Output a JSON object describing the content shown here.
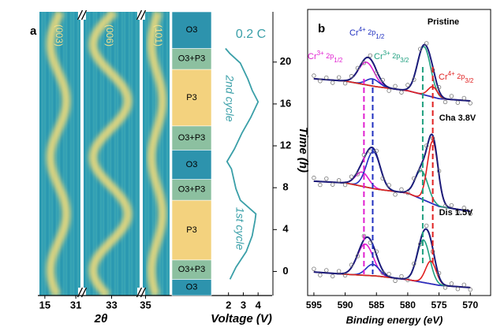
{
  "chart_data": [
    {
      "type": "phase-map",
      "panel_label": "a",
      "x_label": "2θ",
      "y_label": "Time (h)",
      "ylim": [
        -2.3,
        24.8
      ],
      "yticks": [
        0,
        4,
        8,
        12,
        16,
        20
      ],
      "segments": [
        {
          "label": "(003)",
          "xlim": [
            12.2,
            33.4
          ],
          "xticks": [
            15,
            31
          ]
        },
        {
          "label": "(006)",
          "xlim": [
            31.2,
            34.8
          ],
          "xticks": [
            33
          ]
        },
        {
          "label": "(101)",
          "xlim": [
            34.7,
            37.6
          ],
          "xticks": [
            35
          ]
        }
      ],
      "phases": [
        {
          "label": "O3",
          "range": [
            -2.3,
            -0.75
          ],
          "color": "#2d93ad"
        },
        {
          "label": "O3+P3",
          "range": [
            -0.75,
            1.1
          ],
          "color": "#8cc0a0"
        },
        {
          "label": "P3",
          "range": [
            1.1,
            6.8
          ],
          "color": "#f3d27e"
        },
        {
          "label": "O3+P3",
          "range": [
            6.8,
            8.8
          ],
          "color": "#8cc0a0"
        },
        {
          "label": "O3",
          "range": [
            8.8,
            11.6
          ],
          "color": "#2d93ad"
        },
        {
          "label": "O3+P3",
          "range": [
            11.6,
            13.9
          ],
          "color": "#8cc0a0"
        },
        {
          "label": "P3",
          "range": [
            13.9,
            19.3
          ],
          "color": "#f3d27e"
        },
        {
          "label": "O3+P3",
          "range": [
            19.3,
            21.3
          ],
          "color": "#8cc0a0"
        },
        {
          "label": "O3",
          "range": [
            21.3,
            24.8
          ],
          "color": "#2d93ad"
        }
      ],
      "voltage": {
        "x_label": "Voltage (V)",
        "xlim": [
          0.95,
          4.95
        ],
        "xticks": [
          2,
          3,
          4
        ],
        "color": "#3a9fa8",
        "annotation": "0.2 C",
        "cycles": [
          "1st cycle",
          "2nd cycle"
        ],
        "x": [
          2.1,
          2.5,
          3.2,
          3.6,
          3.8,
          3.85,
          2.8,
          2.5,
          2.2,
          1.9,
          2.4,
          2.9,
          3.5,
          4.0,
          3.6,
          3.3,
          2.8,
          2.1,
          1.8
        ],
        "y": [
          -0.75,
          0.4,
          1.9,
          3.4,
          4.9,
          5.5,
          6.8,
          7.9,
          9.8,
          10.5,
          11.7,
          13.2,
          14.7,
          16.2,
          17.3,
          18.4,
          19.9,
          20.8,
          21.3
        ]
      }
    },
    {
      "type": "line",
      "panel_label": "b",
      "x_label": "Binding energy (eV)",
      "xlim": [
        596,
        567
      ],
      "xticks": [
        595,
        590,
        585,
        580,
        575,
        570
      ],
      "ylim": [
        0,
        100
      ],
      "x": [
        595,
        594,
        593,
        592,
        591,
        590,
        589,
        588,
        587,
        586,
        585,
        584,
        583,
        582,
        581,
        580,
        579,
        578,
        577,
        576,
        575,
        574,
        573,
        572,
        571,
        570
      ],
      "background_x": [
        595,
        590,
        585,
        580,
        575,
        570
      ],
      "envelope_color": "#1b1b7a",
      "background_color": "#8a8a1a",
      "point_color": "#777777",
      "components": [
        {
          "name": "Cr3+ 2p1/2",
          "color": "#e020d0",
          "reference": 587.0
        },
        {
          "name": "Cr4+ 2p1/2",
          "color": "#2030c0",
          "reference": 585.6
        },
        {
          "name": "Cr3+ 2p3/2",
          "color": "#20a080",
          "reference": 577.6
        },
        {
          "name": "Cr4+ 2p3/2",
          "color": "#e02020",
          "reference": 576.0
        }
      ],
      "series": [
        {
          "name": "Pristine",
          "values": [
            77.5,
            75.6,
            76.8,
            75.0,
            76.9,
            74.8,
            77.3,
            80.2,
            82.0,
            84.6,
            78.4,
            76.0,
            72.2,
            73.8,
            71.6,
            74.2,
            76.1,
            86.9,
            88.9,
            79.5,
            73.4,
            68.2,
            70.3,
            68.0,
            69.6,
            67.8
          ],
          "background": [
            76.4,
            75.6,
            73.6,
            72.2,
            69.4,
            68.6
          ],
          "peaks": [
            [
              586.6,
              8,
              3
            ],
            [
              585.6,
              2.5,
              2.5
            ],
            [
              577.4,
              17,
              2.5
            ],
            [
              576.0,
              3.6,
              1.8
            ]
          ]
        },
        {
          "name": "Cha 3.8V",
          "values": [
            41.5,
            39.0,
            41.2,
            39.1,
            40.6,
            39.0,
            41.9,
            42.8,
            49.6,
            50.8,
            51.0,
            41.3,
            38.9,
            35.6,
            37.4,
            36.2,
            41.3,
            44.2,
            52.8,
            55.4,
            43.9,
            31.5,
            31.8,
            29.4,
            30.9,
            28.8
          ],
          "background": [
            40.3,
            39.7,
            37.5,
            36.1,
            31.4,
            29.7
          ],
          "peaks": [
            [
              587.3,
              5,
              2.5
            ],
            [
              585.5,
              13,
              2.6
            ],
            [
              577.8,
              10,
              2.4
            ],
            [
              576.0,
              22,
              2.0
            ]
          ]
        },
        {
          "name": "Dis 1.5V",
          "values": [
            9.4,
            7.2,
            8.9,
            6.8,
            8.6,
            7.1,
            10.8,
            13.9,
            21.0,
            18.6,
            15.5,
            8.0,
            7.6,
            5.2,
            6.8,
            5.5,
            11.2,
            18.1,
            24.6,
            15.5,
            7.9,
            2.8,
            4.2,
            2.3,
            3.8,
            2.1
          ],
          "background": [
            8.3,
            7.5,
            6.9,
            5.6,
            3.6,
            2.8
          ],
          "peaks": [
            [
              586.8,
              11,
              3
            ],
            [
              585.6,
              4,
              2.5
            ],
            [
              577.5,
              15,
              2.4
            ],
            [
              576.3,
              8,
              2.0
            ]
          ]
        }
      ]
    }
  ]
}
